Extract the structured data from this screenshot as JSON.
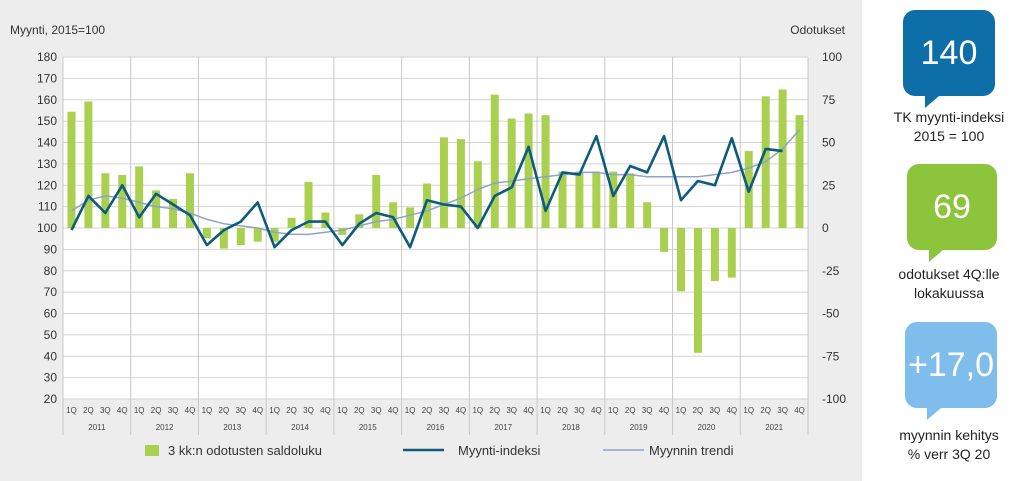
{
  "chart_data": {
    "type": "bar+line",
    "left_axis_label": "Myynti,  2015=100",
    "right_axis_label": "Odotukset",
    "y_left": {
      "min": 20,
      "max": 180,
      "step": 10
    },
    "y_right": {
      "min": -100,
      "max": 100,
      "step": 25
    },
    "quarters": [
      "1Q",
      "2Q",
      "3Q",
      "4Q",
      "1Q",
      "2Q",
      "3Q",
      "4Q",
      "1Q",
      "2Q",
      "3Q",
      "4Q",
      "1Q",
      "2Q",
      "3Q",
      "4Q",
      "1Q",
      "2Q",
      "3Q",
      "4Q",
      "1Q",
      "2Q",
      "3Q",
      "4Q",
      "1Q",
      "2Q",
      "3Q",
      "4Q",
      "1Q",
      "2Q",
      "3Q",
      "4Q",
      "1Q",
      "2Q",
      "3Q",
      "4Q",
      "1Q",
      "2Q",
      "3Q",
      "4Q",
      "1Q",
      "2Q",
      "3Q",
      "4Q"
    ],
    "years": [
      "2011",
      "2012",
      "2013",
      "2014",
      "2015",
      "2016",
      "2017",
      "2018",
      "2019",
      "2020",
      "2021"
    ],
    "series": [
      {
        "name": "3 kk:n odotusten saldoluku",
        "kind": "bar",
        "axis": "right",
        "color": "#a9d04f",
        "values": [
          68,
          74,
          32,
          31,
          36,
          22,
          17,
          32,
          -6,
          -12,
          -10,
          -8,
          -8,
          6,
          27,
          9,
          -4,
          8,
          31,
          15,
          12,
          26,
          53,
          52,
          39,
          78,
          64,
          67,
          66,
          33,
          33,
          33,
          33,
          32,
          15,
          -14,
          -37,
          -73,
          -31,
          -29,
          45,
          77,
          81,
          66
        ]
      },
      {
        "name": "Myynti-indeksi",
        "kind": "line",
        "axis": "left",
        "color": "#0e5b7d",
        "values": [
          99,
          115,
          107,
          120,
          105,
          116,
          111,
          106,
          92,
          99,
          103,
          112,
          91,
          99,
          103,
          103,
          92,
          102,
          107,
          105,
          91,
          113,
          111,
          110,
          100,
          115,
          119,
          138,
          108,
          126,
          125,
          143,
          115,
          129,
          126,
          143,
          113,
          122,
          120,
          142,
          117,
          137,
          136,
          null
        ]
      },
      {
        "name": "Myynnin trendi",
        "kind": "line",
        "axis": "left",
        "color": "#8fa3c8",
        "values": [
          108,
          113,
          115,
          114,
          112,
          110,
          109,
          107,
          104,
          102,
          101,
          100,
          98,
          97,
          97,
          98,
          99,
          101,
          103,
          104,
          106,
          108,
          111,
          114,
          118,
          121,
          122,
          123,
          124,
          125,
          126,
          126,
          125,
          125,
          124,
          124,
          124,
          124,
          125,
          126,
          128,
          131,
          137,
          146
        ]
      }
    ]
  },
  "kpis": [
    {
      "value": "140",
      "label_lines": [
        "TK myynti-indeksi",
        "2015 = 100"
      ],
      "color": "#0e6fa8"
    },
    {
      "value": "69",
      "label_lines": [
        "odotukset 4Q:lle",
        "lokakuussa"
      ],
      "color": "#8cc43c"
    },
    {
      "value": "+17,0",
      "label_lines": [
        "myynnin kehitys",
        "% verr 3Q 20"
      ],
      "color": "#7fbdec"
    }
  ]
}
